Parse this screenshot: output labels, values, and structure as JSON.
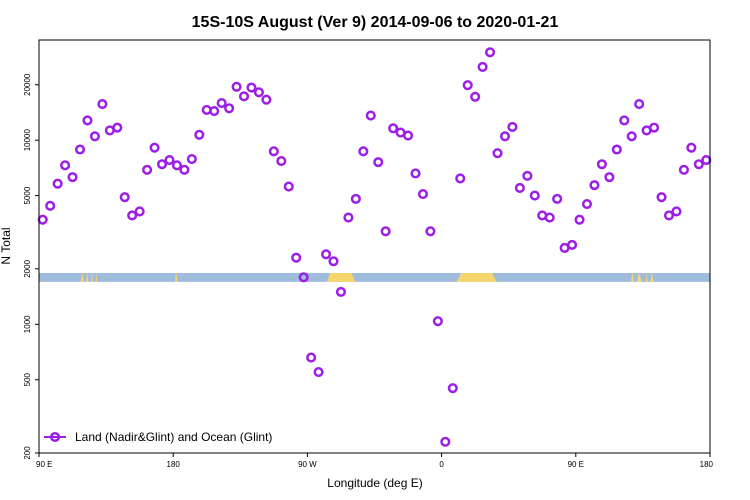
{
  "chart_data": {
    "type": "scatter",
    "title": "15S-10S August (Ver 9)   2014-09-06 to 2020-01-21",
    "xlabel": "Longitude (deg E)",
    "ylabel": "N Total",
    "x_axis_note": "x values are degrees along a wrapped axis: 90E = 0, 180 = 90, 90W = 180, 0 = 270, 90E = 360, 180 = 450",
    "xlim": [
      0,
      450
    ],
    "ylim": [
      200,
      35000
    ],
    "y_scale": "log",
    "x_ticks": [
      {
        "value": 0,
        "label": "90 E"
      },
      {
        "value": 90,
        "label": "180"
      },
      {
        "value": 180,
        "label": "90 W"
      },
      {
        "value": 270,
        "label": "0"
      },
      {
        "value": 360,
        "label": "90 E"
      },
      {
        "value": 450,
        "label": "180"
      }
    ],
    "y_ticks": [
      {
        "value": 200,
        "label": "200"
      },
      {
        "value": 500,
        "label": "500"
      },
      {
        "value": 1000,
        "label": "1000"
      },
      {
        "value": 2000,
        "label": "2000"
      },
      {
        "value": 5000,
        "label": "5000"
      },
      {
        "value": 10000,
        "label": "10000"
      },
      {
        "value": 20000,
        "label": "20000"
      }
    ],
    "series": [
      {
        "name": "Land (Nadir&Glint) and Ocean (Glint)",
        "color": "#9b1fe8",
        "x": [
          2.5,
          7.5,
          12.5,
          17.5,
          22.5,
          27.5,
          32.5,
          37.5,
          42.5,
          47.5,
          52.5,
          57.5,
          62.5,
          67.5,
          72.5,
          77.5,
          82.5,
          87.5,
          92.5,
          97.5,
          102.5,
          107.5,
          112.5,
          117.5,
          122.5,
          127.5,
          132.5,
          137.5,
          142.5,
          147.5,
          152.5,
          157.5,
          162.5,
          167.5,
          172.5,
          177.5,
          182.5,
          187.5,
          192.5,
          197.5,
          202.5,
          207.5,
          212.5,
          217.5,
          222.5,
          227.5,
          232.5,
          237.5,
          242.5,
          247.5,
          252.5,
          257.5,
          262.5,
          267.5,
          272.5,
          277.5,
          282.5,
          287.5,
          292.5,
          297.5,
          302.5,
          307.5,
          312.5,
          317.5,
          322.5,
          327.5,
          332.5,
          337.5,
          342.5,
          347.5,
          352.5,
          357.5,
          362.5,
          367.5,
          372.5,
          377.5,
          382.5,
          387.5,
          392.5,
          397.5,
          402.5,
          407.5,
          412.5,
          417.5,
          422.5,
          427.5,
          432.5,
          437.5,
          442.5,
          447.5
        ],
        "y": [
          3700,
          4400,
          5800,
          7300,
          6300,
          8900,
          12800,
          10500,
          15700,
          11300,
          11700,
          4900,
          3900,
          4100,
          6900,
          9100,
          7400,
          7800,
          7300,
          6900,
          7900,
          10700,
          14600,
          14400,
          15900,
          14900,
          19500,
          17300,
          19300,
          18200,
          16600,
          8700,
          7700,
          5600,
          2300,
          1800,
          660,
          550,
          2400,
          2200,
          1500,
          3800,
          4800,
          8700,
          13600,
          7600,
          3200,
          11600,
          11000,
          10600,
          6600,
          5100,
          3200,
          1040,
          230,
          450,
          6200,
          19900,
          17200,
          25000,
          30000,
          8500,
          10500,
          11800,
          5500,
          6400,
          5000,
          3900,
          3800,
          4800,
          2600,
          2700,
          3700,
          4500,
          5700,
          7400,
          6300,
          8900,
          12800,
          10500,
          15700,
          11300,
          11700,
          4900,
          3900,
          4100,
          6900,
          9100,
          7400,
          7800
        ]
      }
    ],
    "legend": {
      "position": "bottom-left",
      "label": "Land (Nadir&Glint) and Ocean (Glint)"
    },
    "surface_band": {
      "y_range": [
        1700,
        1900
      ],
      "ocean_color": "#a0bcdc",
      "land_color": "#f7d56e",
      "land_x": [
        [
          28,
          30
        ],
        [
          31.5,
          33
        ],
        [
          35,
          36
        ],
        [
          38,
          39
        ],
        [
          91,
          93
        ],
        [
          193,
          212
        ],
        [
          280,
          307
        ],
        [
          397,
          399
        ],
        [
          401,
          404
        ],
        [
          407,
          408
        ],
        [
          410,
          412
        ]
      ]
    }
  }
}
